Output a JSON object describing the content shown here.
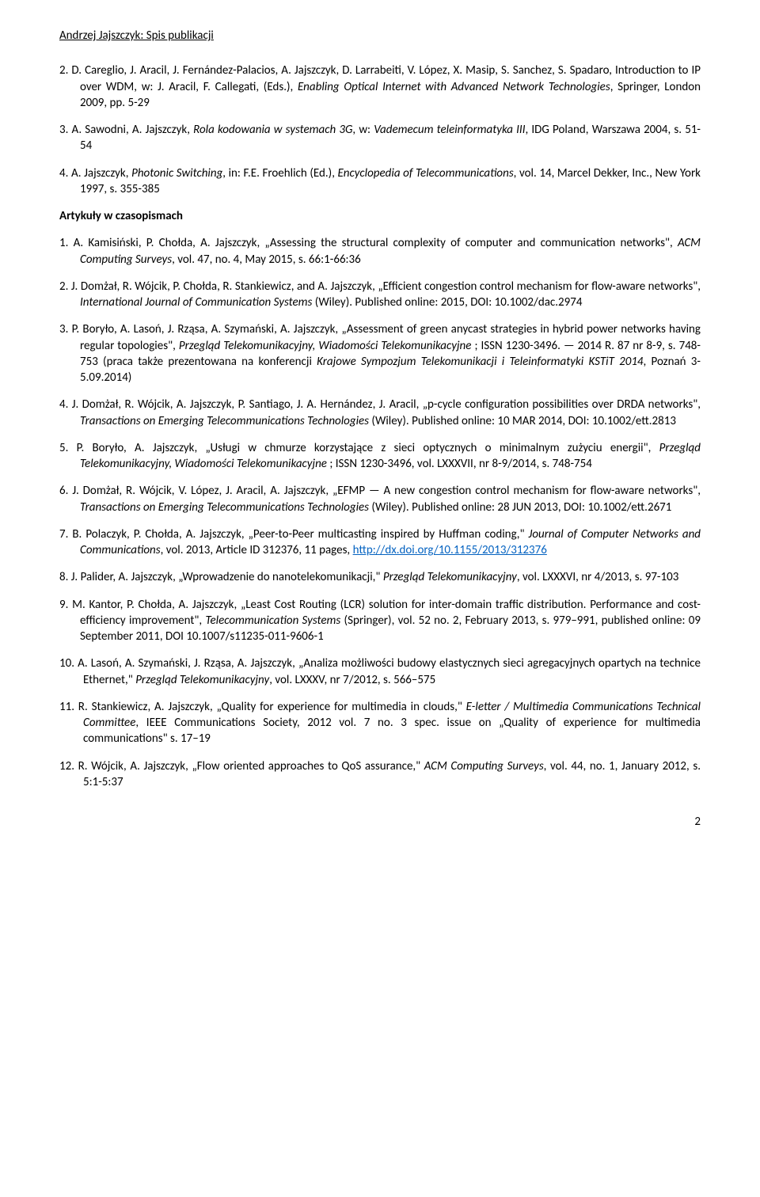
{
  "header": "Andrzej Jajszczyk: Spis publikacji",
  "top_entries": [
    {
      "num": "2.",
      "html": "D. Careglio, J. Aracil, J. Fernández-Palacios, A. Jajszczyk, D. Larrabeiti, V. López, X. Masip, S. Sanchez, S. Spadaro, Introduction to IP over WDM, w: J. Aracil, F. Callegati, (Eds.), <i>Enabling Optical Internet with Advanced Network Technologies</i>, Springer, London 2009, pp. 5-29"
    },
    {
      "num": "3.",
      "html": "A. Sawodni, A. Jajszczyk, <i>Rola kodowania w systemach 3G</i>, w: <i>Vademecum teleinformatyka III</i>, IDG Poland, Warszawa 2004, s. 51-54"
    },
    {
      "num": "4.",
      "html": "A. Jajszczyk, <i>Photonic Switching</i>, in: F.E. Froehlich (Ed.), <i>Encyclopedia of Telecommunications</i>, vol. 14, Marcel Dekker, Inc., New York 1997, s. 355-385"
    }
  ],
  "section_title": "Artykuły w czasopismach",
  "articles": [
    {
      "num": "1.",
      "html": "A. Kamisiński, P. Chołda, A. Jajszczyk, „Assessing the structural complexity of computer and communication networks\", <i>ACM Computing Surveys</i>, vol. 47, no. 4, May 2015, s. 66:1-66:36"
    },
    {
      "num": "2.",
      "html": "J. Domżał, R. Wójcik, P. Chołda, R. Stankiewicz, and A. Jajszczyk, „Efficient congestion control mechanism for flow-aware networks\", <i>International Journal of Communication Systems</i> (Wiley). Published online: 2015, DOI: 10.1002/dac.2974"
    },
    {
      "num": "3.",
      "html": "P. Boryło, A. Lasoń, J. Rząsa, A. Szymański, A. Jajszczyk, „Assessment of green anycast strategies in hybrid power networks having regular topologies\", <i>Przegląd Telekomunikacyjny, Wiadomości Telekomunikacyjne</i> ; ISSN 1230-3496. — 2014 R. 87 nr 8-9, s. 748-753 (praca także prezentowana na konferencji <i>Krajowe Sympozjum Telekomunikacji i Teleinformatyki KSTiT 2014</i>, Poznań 3-5.09.2014)"
    },
    {
      "num": "4.",
      "html": "J. Domżał, R. Wójcik, A. Jajszczyk, P. Santiago, J. A. Hernández, J. Aracil, „p-cycle configuration possibilities over DRDA networks\", <i>Transactions on Emerging Telecommunications Technologies</i> (Wiley). Published online: 10 MAR 2014, DOI: 10.1002/ett.2813"
    },
    {
      "num": "5.",
      "html": "P. Boryło, A. Jajszczyk, „Usługi w chmurze korzystające z sieci optycznych o minimalnym zużyciu energii\", <i>Przegląd Telekomunikacyjny, Wiadomości Telekomunikacyjne</i> ; ISSN 1230-3496, vol. LXXXVII, nr 8-9/2014, s. 748-754"
    },
    {
      "num": "6.",
      "html": "J. Domżał, R. Wójcik, V. López, J. Aracil, A. Jajszczyk, „EFMP — A new congestion control mechanism for flow-aware networks\", <i>Transactions on Emerging Telecommunications Technologies</i> (Wiley). Published online: 28 JUN 2013, DOI: 10.1002/ett.2671"
    },
    {
      "num": "7.",
      "html": "B. Polaczyk, P. Chołda, A. Jajszczyk, „Peer-to-Peer multicasting inspired by Huffman coding,\" <i>Journal of Computer Networks and Communications</i>, vol. 2013, Article ID 312376, 11 pages, <a class=\"link\" href=\"#\">http://dx.doi.org/10.1155/2013/312376</a>"
    },
    {
      "num": "8.",
      "html": "J. Palider, A. Jajszczyk, „Wprowadzenie do nanotelekomunikacji,\" <i>Przegląd Telekomunikacyjny</i>, vol. LXXXVI, nr 4/2013, s. 97-103"
    },
    {
      "num": "9.",
      "html": "M. Kantor, P. Chołda, A. Jajszczyk, „Least Cost Routing (LCR) solution for inter-domain traffic distribution. Performance and cost-efficiency improvement\", <i>Telecommunication Systems</i> (Springer), vol. 52 no. 2, February 2013, s. 979–991, published online: 09 September 2011, DOI 10.1007/s11235-011-9606-1"
    },
    {
      "num": "10.",
      "html": "A. Lasoń, A. Szymański, J. Rząsa, A. Jajszczyk, „Analiza możliwości budowy elastycznych sieci agregacyjnych opartych na technice Ethernet,\" <i>Przegląd Telekomunikacyjny</i>, vol. LXXXV, nr 7/2012, s. 566–575"
    },
    {
      "num": "11.",
      "html": "R. Stankiewicz, A. Jajszczyk, „Quality for experience for multimedia in clouds,\" <i>E-letter / Multimedia Communications Technical Committee</i>, IEEE Communications Society, 2012 vol. 7 no. 3 spec. issue on „Quality of experience for multimedia communications\" s. 17–19"
    },
    {
      "num": "12.",
      "html": "R. Wójcik, A. Jajszczyk, „Flow oriented approaches to QoS assurance,\" <i>ACM Computing Surveys</i>, vol. 44, no. 1, January 2012, s. 5:1-5:37"
    }
  ],
  "page_number": "2"
}
